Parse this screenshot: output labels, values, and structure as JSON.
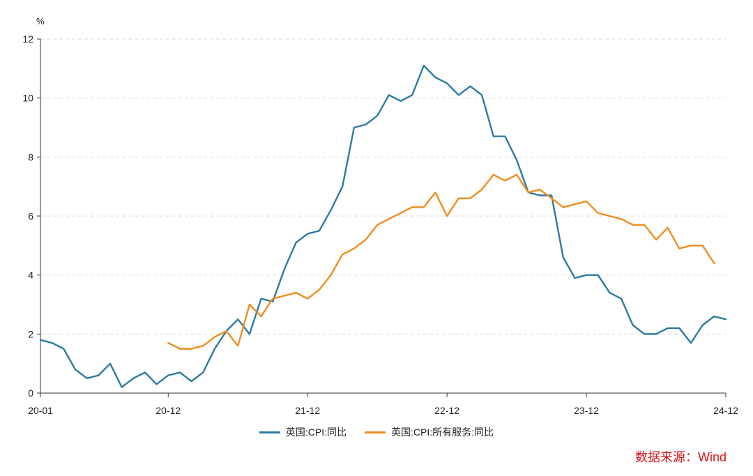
{
  "chart_data": {
    "type": "line",
    "unit": "%",
    "ylim": [
      0,
      12
    ],
    "yticks": [
      0,
      2,
      4,
      6,
      8,
      10,
      12
    ],
    "x_tick_labels": [
      "20-01",
      "20-12",
      "21-12",
      "22-12",
      "23-12",
      "24-12"
    ],
    "x_start": "2020-01",
    "x_end": "2024-12",
    "grid": "horizontal-dashed",
    "legend_position": "bottom",
    "series": [
      {
        "name": "英国:CPI:同比",
        "color": "#2e7aa0",
        "start": "2020-01",
        "values": [
          1.8,
          1.7,
          1.5,
          0.8,
          0.5,
          0.6,
          1.0,
          0.2,
          0.5,
          0.7,
          0.3,
          0.6,
          0.7,
          0.4,
          0.7,
          1.5,
          2.1,
          2.5,
          2.0,
          3.2,
          3.1,
          4.2,
          5.1,
          5.4,
          5.5,
          6.2,
          7.0,
          9.0,
          9.1,
          9.4,
          10.1,
          9.9,
          10.1,
          11.1,
          10.7,
          10.5,
          10.1,
          10.4,
          10.1,
          8.7,
          8.7,
          7.9,
          6.8,
          6.7,
          6.7,
          4.6,
          3.9,
          4.0,
          4.0,
          3.4,
          3.2,
          2.3,
          2.0,
          2.0,
          2.2,
          2.2,
          1.7,
          2.3,
          2.6,
          2.5
        ]
      },
      {
        "name": "英国:CPI:所有服务:同比",
        "color": "#f08c1e",
        "start": "2020-12",
        "values": [
          1.7,
          1.5,
          1.5,
          1.6,
          1.9,
          2.1,
          1.6,
          3.0,
          2.6,
          3.2,
          3.3,
          3.4,
          3.2,
          3.5,
          4.0,
          4.7,
          4.9,
          5.2,
          5.7,
          5.9,
          6.1,
          6.3,
          6.3,
          6.8,
          6.0,
          6.6,
          6.6,
          6.9,
          7.4,
          7.2,
          7.4,
          6.8,
          6.9,
          6.6,
          6.3,
          6.4,
          6.5,
          6.1,
          6.0,
          5.9,
          5.7,
          5.7,
          5.2,
          5.6,
          4.9,
          5.0,
          5.0,
          4.4
        ]
      }
    ]
  },
  "source_text": "数据来源：Wind"
}
